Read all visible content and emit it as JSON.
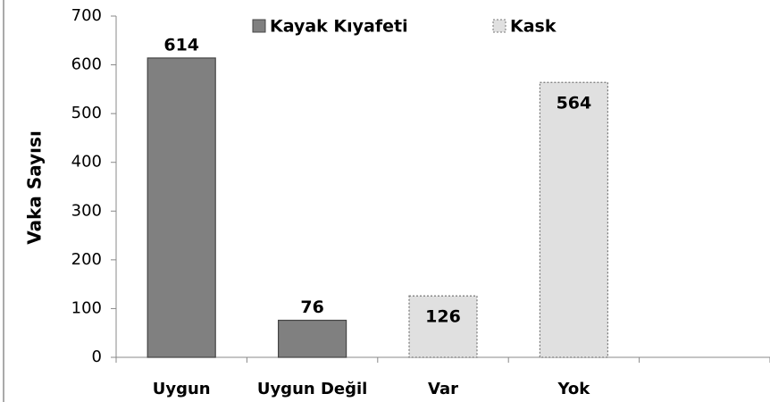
{
  "chart_data": {
    "type": "bar",
    "categories": [
      "Uygun",
      "Uygun Değil",
      "Var",
      "Yok",
      null
    ],
    "series": [
      {
        "name": "Kayak Kıyafeti",
        "color": "#808080",
        "values": [
          614,
          76,
          null,
          null,
          null
        ]
      },
      {
        "name": "Kask",
        "color": "#e0e0e0",
        "values": [
          null,
          null,
          126,
          564,
          null
        ]
      }
    ],
    "y_label": "Vaka Sayısı",
    "ylim": [
      0,
      700
    ],
    "yticks": [
      0,
      100,
      200,
      300,
      400,
      500,
      600,
      700
    ],
    "grid": false,
    "legend": "top"
  }
}
